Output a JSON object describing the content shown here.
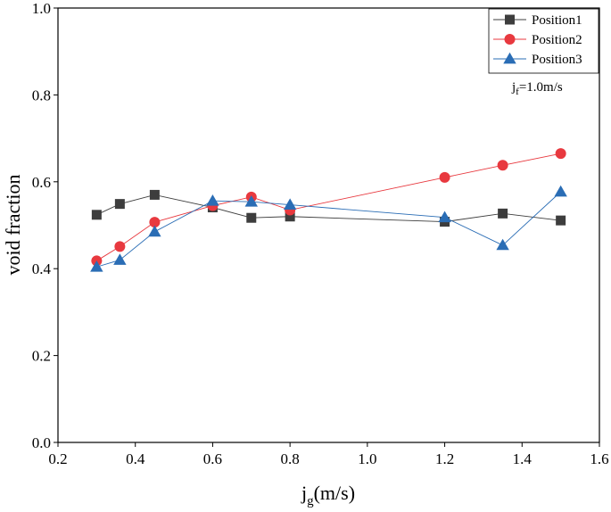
{
  "chart_data": {
    "type": "line",
    "xlabel": {
      "main": "j",
      "sub": "g",
      "rest": "(m/s)"
    },
    "ylabel": "void fraction",
    "xlim": [
      0.2,
      1.6
    ],
    "ylim": [
      0.0,
      1.0
    ],
    "xticks": [
      "0.2",
      "0.4",
      "0.6",
      "0.8",
      "1.0",
      "1.2",
      "1.4",
      "1.6"
    ],
    "yticks": [
      "0.0",
      "0.2",
      "0.4",
      "0.6",
      "0.8",
      "1.0"
    ],
    "grid": false,
    "legend_position": "top-right",
    "annotation": {
      "main": "j",
      "sub": "f",
      "rest": "=1.0m/s"
    },
    "series": [
      {
        "name": "Position1",
        "color": "#3d3d3d",
        "marker": "square",
        "x": [
          0.3,
          0.36,
          0.45,
          0.6,
          0.7,
          0.8,
          1.2,
          1.35,
          1.5
        ],
        "y": [
          0.524,
          0.549,
          0.57,
          0.541,
          0.517,
          0.52,
          0.508,
          0.527,
          0.511
        ]
      },
      {
        "name": "Position2",
        "color": "#e8393f",
        "marker": "circle",
        "x": [
          0.3,
          0.36,
          0.45,
          0.6,
          0.7,
          0.8,
          1.2,
          1.35,
          1.5
        ],
        "y": [
          0.418,
          0.451,
          0.507,
          0.545,
          0.565,
          0.535,
          0.61,
          0.638,
          0.665
        ]
      },
      {
        "name": "Position3",
        "color": "#2a6db5",
        "marker": "triangle",
        "x": [
          0.3,
          0.36,
          0.45,
          0.6,
          0.7,
          0.8,
          1.2,
          1.35,
          1.5
        ],
        "y": [
          0.404,
          0.42,
          0.485,
          0.556,
          0.554,
          0.547,
          0.518,
          0.454,
          0.577
        ]
      }
    ]
  }
}
